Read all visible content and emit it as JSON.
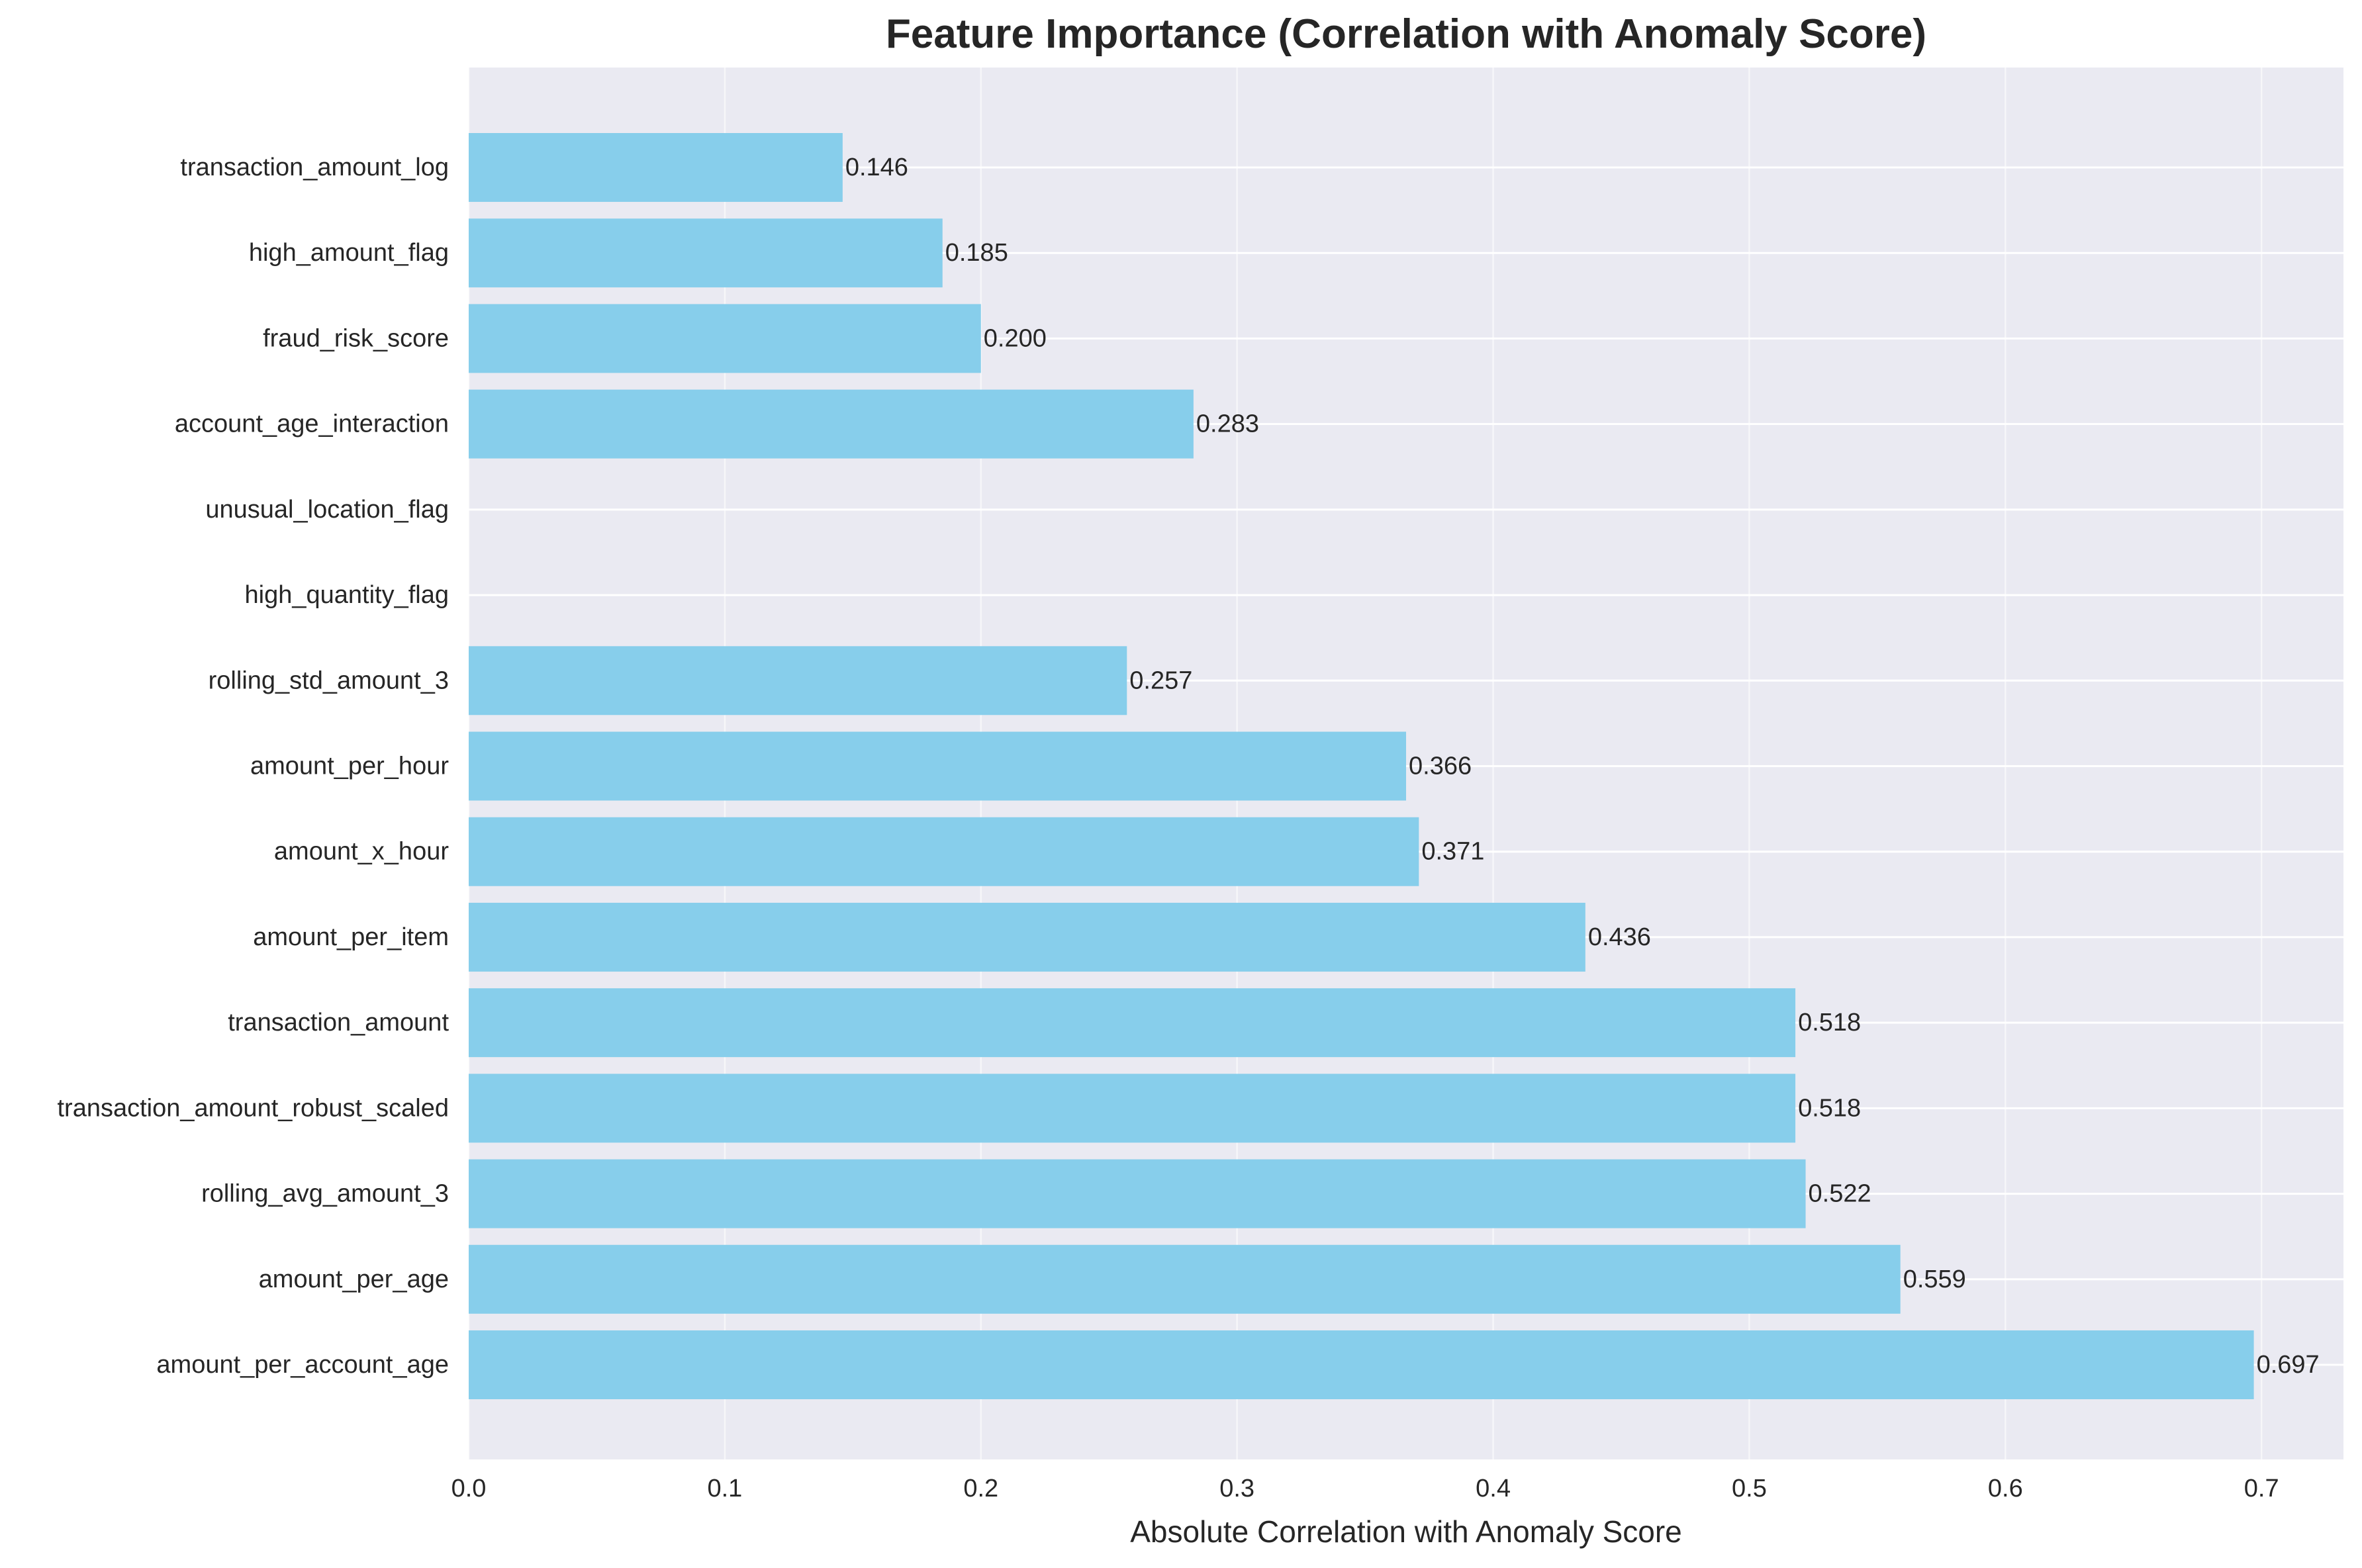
{
  "colors": {
    "bar": "#87ceeb",
    "plot_background": "#eaeaf2",
    "grid": "#ffffff",
    "text": "#262626"
  },
  "chart_data": {
    "type": "bar",
    "orientation": "horizontal",
    "title": "Feature Importance (Correlation with Anomaly Score)",
    "xlabel": "Absolute Correlation with Anomaly Score",
    "ylabel": "",
    "xlim": [
      0,
      0.732
    ],
    "xticks": [
      0.0,
      0.1,
      0.2,
      0.3,
      0.4,
      0.5,
      0.6,
      0.7
    ],
    "xtick_labels": [
      "0.0",
      "0.1",
      "0.2",
      "0.3",
      "0.4",
      "0.5",
      "0.6",
      "0.7"
    ],
    "grid": true,
    "categories": [
      "amount_per_account_age",
      "amount_per_age",
      "rolling_avg_amount_3",
      "transaction_amount_robust_scaled",
      "transaction_amount",
      "amount_per_item",
      "amount_x_hour",
      "amount_per_hour",
      "rolling_std_amount_3",
      "high_quantity_flag",
      "unusual_location_flag",
      "account_age_interaction",
      "fraud_risk_score",
      "high_amount_flag",
      "transaction_amount_log"
    ],
    "values": [
      0.697,
      0.559,
      0.522,
      0.518,
      0.518,
      0.436,
      0.371,
      0.366,
      0.257,
      null,
      null,
      0.283,
      0.2,
      0.185,
      0.146
    ],
    "value_labels": [
      "0.697",
      "0.559",
      "0.522",
      "0.518",
      "0.518",
      "0.436",
      "0.371",
      "0.366",
      "0.257",
      "",
      "",
      "0.283",
      "0.200",
      "0.185",
      "0.146"
    ]
  }
}
